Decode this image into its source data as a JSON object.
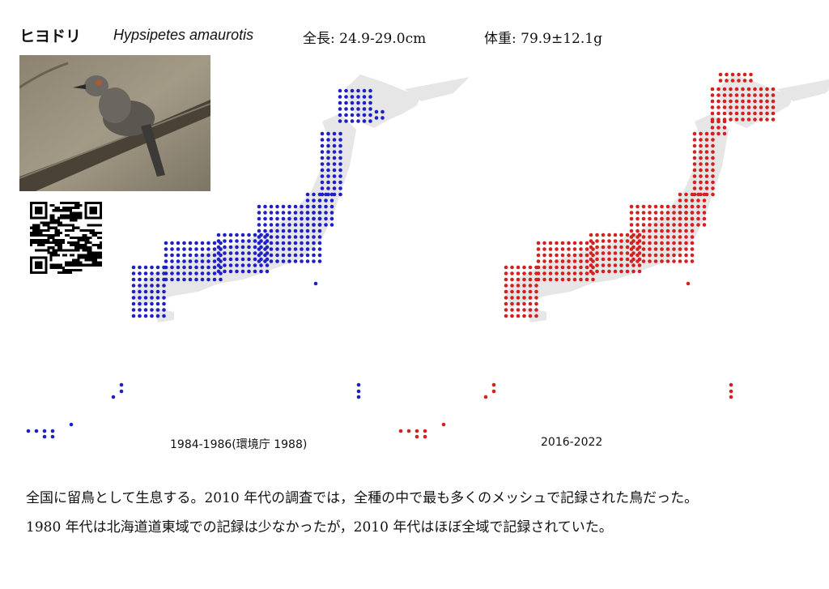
{
  "species": {
    "japanese_name": "ヒヨドリ",
    "scientific_name": "Hypsipetes amaurotis",
    "length": "全長: 24.9-29.0cm",
    "weight": "体重: 79.9±12.1g"
  },
  "photo": {
    "subject": "brown-eared bulbul perched on branch"
  },
  "qr_code": {
    "icon": "qr-code-icon"
  },
  "colors": {
    "period1": "#1f1fc8",
    "period2": "#d62020",
    "land": "#e6e6e6"
  },
  "maps": [
    {
      "caption": "1984-1986(環境庁 1988)",
      "color": "#1f1fc8"
    },
    {
      "caption": "2016-2022",
      "color": "#d62020"
    }
  ],
  "description": {
    "line1": "全国に留鳥として生息する。2010 年代の調査では，全種の中で最も多くのメッシュで記録された鳥だった。",
    "line2": "1980 年代は北海道道東域での記録は少なかったが，2010 年代はほぼ全域で記録されていた。"
  }
}
